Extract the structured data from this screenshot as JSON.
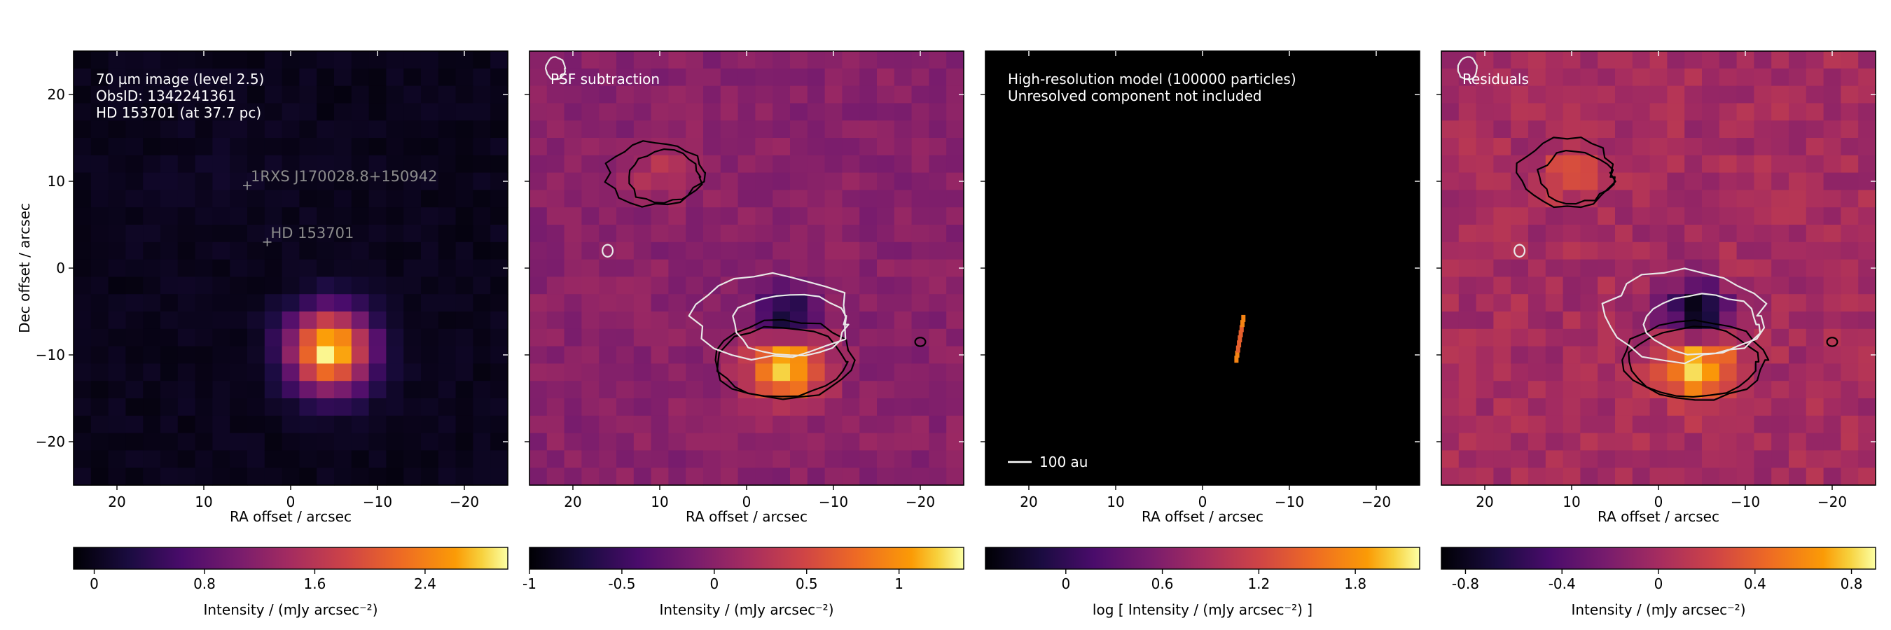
{
  "chart_data": [
    {
      "type": "heatmap",
      "annotation_lines": [
        "70 µm image (level 2.5)",
        "ObsID: 1342241361",
        "HD 153701 (at 37.7 pc)"
      ],
      "xlabel": "RA offset / arcsec",
      "ylabel": "Dec offset / arcsec",
      "xlim": [
        25,
        -25
      ],
      "ylim": [
        -25,
        25
      ],
      "xticks": [
        20,
        10,
        0,
        -10,
        -20
      ],
      "xtick_labels": [
        "20",
        "10",
        "0",
        "−10",
        "−20"
      ],
      "yticks": [
        20,
        10,
        0,
        -10,
        -20
      ],
      "ytick_labels": [
        "20",
        "10",
        "0",
        "−10",
        "−20"
      ],
      "markers": [
        {
          "label": "1RXS J170028.8+150942",
          "x": 5,
          "y": 9.5
        },
        {
          "label": "HD 153701",
          "x": 2.7,
          "y": 3
        }
      ],
      "colorbar": {
        "label": "Intensity / (mJy arcsec⁻²)",
        "range": [
          -0.15,
          3.0
        ],
        "ticks": [
          0,
          0.8,
          1.6,
          2.4
        ],
        "tick_labels": [
          "0",
          "0.8",
          "1.6",
          "2.4"
        ]
      },
      "sources": [
        {
          "x": -4.5,
          "y": -9.5,
          "amp": 3.0,
          "sigma": 3.3
        }
      ],
      "colormap": "inferno"
    },
    {
      "type": "heatmap",
      "annotation_lines": [
        "PSF subtraction"
      ],
      "xlabel": "RA offset / arcsec",
      "xlim": [
        25,
        -25
      ],
      "ylim": [
        -25,
        25
      ],
      "xticks": [
        20,
        10,
        0,
        -10,
        -20
      ],
      "xtick_labels": [
        "20",
        "10",
        "0",
        "−10",
        "−20"
      ],
      "colorbar": {
        "label": "Intensity / (mJy arcsec⁻²)",
        "range": [
          -1.0,
          1.35
        ],
        "ticks": [
          -1,
          -0.5,
          0,
          0.5,
          1
        ],
        "tick_labels": [
          "-1",
          "-0.5",
          "0",
          "0.5",
          "1"
        ]
      },
      "sources": [
        {
          "x": -4.5,
          "y": -11,
          "amp": 1.35,
          "sigma": 3.0
        },
        {
          "x": -4.5,
          "y": -6,
          "amp": -1.05,
          "sigma": 2.4
        },
        {
          "x": 10,
          "y": 11,
          "amp": 0.32,
          "sigma": 2.3
        }
      ],
      "colormap": "inferno"
    },
    {
      "type": "heatmap",
      "annotation_lines": [
        "High-resolution model (100000 particles)",
        "Unresolved component not included"
      ],
      "scalebar_label": "100 au",
      "xlabel": "RA offset / arcsec",
      "xlim": [
        25,
        -25
      ],
      "ylim": [
        -25,
        25
      ],
      "xticks": [
        20,
        10,
        0,
        -10,
        -20
      ],
      "xtick_labels": [
        "20",
        "10",
        "0",
        "−10",
        "−20"
      ],
      "colorbar": {
        "label": "log [ Intensity / (mJy arcsec⁻²) ]",
        "range": [
          -0.5,
          2.2
        ],
        "ticks": [
          0,
          0.6,
          1.2,
          1.8
        ],
        "tick_labels": [
          "0",
          "0.6",
          "1.2",
          "1.8"
        ]
      },
      "disk_segment": {
        "x1": -3.9,
        "y1": -10.5,
        "x2": -4.7,
        "y2": -5.8
      },
      "colormap": "inferno"
    },
    {
      "type": "heatmap",
      "annotation_lines": [
        "Residuals"
      ],
      "xlabel": "RA offset / arcsec",
      "xlim": [
        25,
        -25
      ],
      "ylim": [
        -25,
        25
      ],
      "xticks": [
        20,
        10,
        0,
        -10,
        -20
      ],
      "xtick_labels": [
        "20",
        "10",
        "0",
        "−10",
        "−20"
      ],
      "colorbar": {
        "label": "Intensity / (mJy arcsec⁻²)",
        "range": [
          -0.9,
          0.9
        ],
        "ticks": [
          -0.8,
          -0.4,
          0,
          0.4,
          0.8
        ],
        "tick_labels": [
          "-0.8",
          "-0.4",
          "0",
          "0.4",
          "0.8"
        ]
      },
      "sources": [
        {
          "x": -4.5,
          "y": -11,
          "amp": 0.9,
          "sigma": 2.9
        },
        {
          "x": -4.5,
          "y": -5.5,
          "amp": -0.95,
          "sigma": 2.6
        },
        {
          "x": 10,
          "y": 11,
          "amp": 0.25,
          "sigma": 2.3
        }
      ],
      "colormap": "inferno"
    }
  ]
}
